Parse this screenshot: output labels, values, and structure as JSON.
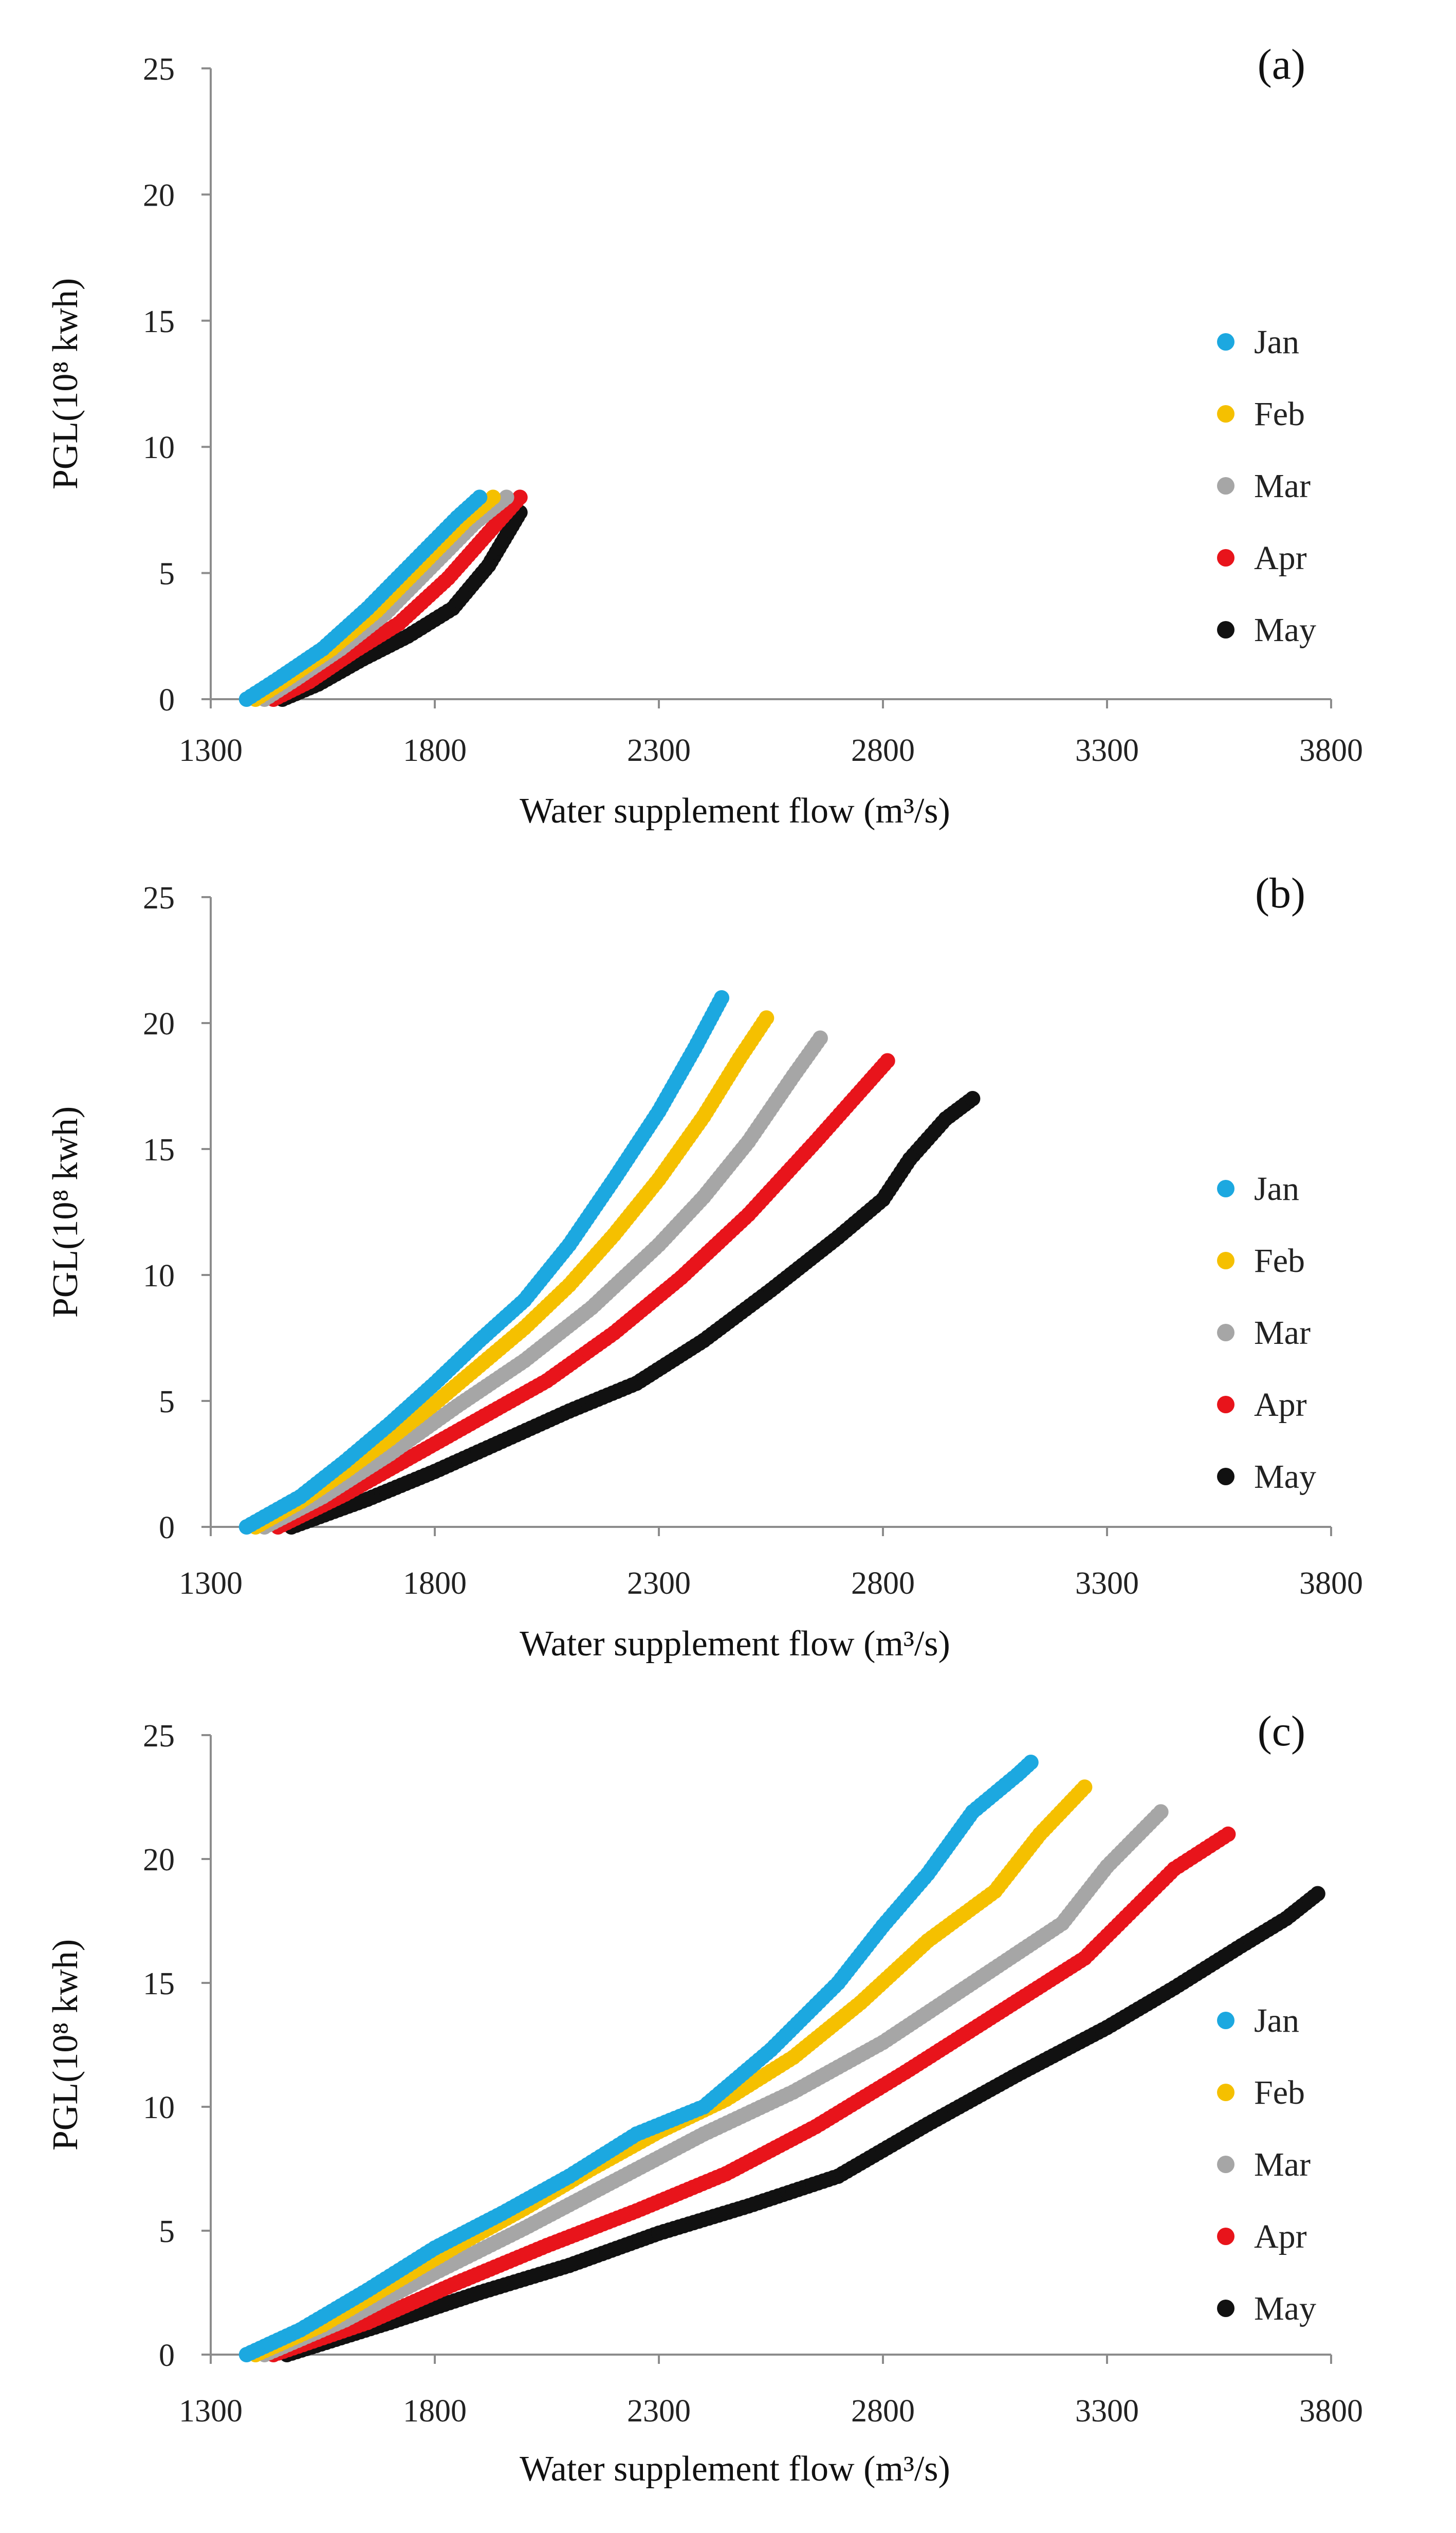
{
  "chart_data": [
    {
      "type": "scatter",
      "panel_label": "(a)",
      "xlabel": "Water supplement flow (m³/s)",
      "ylabel": "PGL(10⁸ kwh)",
      "xlim": [
        1300,
        3800
      ],
      "ylim": [
        0,
        25
      ],
      "xticks": [
        1300,
        1800,
        2300,
        2800,
        3300,
        3800
      ],
      "yticks": [
        0,
        5,
        10,
        15,
        20,
        25
      ],
      "legend_position": "right",
      "series": [
        {
          "name": "Jan",
          "color": "#1CA8E0",
          "points": [
            [
              1380,
              0
            ],
            [
              1450,
              0.8
            ],
            [
              1550,
              2.0
            ],
            [
              1650,
              3.6
            ],
            [
              1750,
              5.4
            ],
            [
              1850,
              7.2
            ],
            [
              1900,
              8.0
            ]
          ]
        },
        {
          "name": "Feb",
          "color": "#F5C000",
          "points": [
            [
              1400,
              0
            ],
            [
              1470,
              0.8
            ],
            [
              1570,
              2.0
            ],
            [
              1670,
              3.5
            ],
            [
              1770,
              5.3
            ],
            [
              1870,
              7.1
            ],
            [
              1930,
              8.0
            ]
          ]
        },
        {
          "name": "Mar",
          "color": "#A6A6A6",
          "points": [
            [
              1420,
              0
            ],
            [
              1490,
              0.8
            ],
            [
              1590,
              2.0
            ],
            [
              1690,
              3.4
            ],
            [
              1790,
              5.2
            ],
            [
              1890,
              7.0
            ],
            [
              1960,
              8.0
            ]
          ]
        },
        {
          "name": "Apr",
          "color": "#E8141B",
          "points": [
            [
              1440,
              0
            ],
            [
              1520,
              0.7
            ],
            [
              1620,
              1.9
            ],
            [
              1720,
              3.0
            ],
            [
              1830,
              4.8
            ],
            [
              1920,
              6.6
            ],
            [
              1990,
              8.0
            ]
          ]
        },
        {
          "name": "May",
          "color": "#111111",
          "points": [
            [
              1460,
              0
            ],
            [
              1540,
              0.6
            ],
            [
              1640,
              1.6
            ],
            [
              1740,
              2.5
            ],
            [
              1840,
              3.6
            ],
            [
              1920,
              5.3
            ],
            [
              1990,
              7.4
            ]
          ]
        }
      ]
    },
    {
      "type": "scatter",
      "panel_label": "(b)",
      "xlabel": "Water supplement flow (m³/s)",
      "ylabel": "PGL(10⁸ kwh)",
      "xlim": [
        1300,
        3800
      ],
      "ylim": [
        0,
        25
      ],
      "xticks": [
        1300,
        1800,
        2300,
        2800,
        3300,
        3800
      ],
      "yticks": [
        0,
        5,
        10,
        15,
        20,
        25
      ],
      "legend_position": "right",
      "series": [
        {
          "name": "Jan",
          "color": "#1CA8E0",
          "points": [
            [
              1380,
              0
            ],
            [
              1500,
              1.2
            ],
            [
              1600,
              2.6
            ],
            [
              1700,
              4.1
            ],
            [
              1800,
              5.7
            ],
            [
              1900,
              7.4
            ],
            [
              2000,
              9.0
            ],
            [
              2100,
              11.2
            ],
            [
              2200,
              13.8
            ],
            [
              2300,
              16.5
            ],
            [
              2380,
              19.0
            ],
            [
              2440,
              21.0
            ]
          ]
        },
        {
          "name": "Feb",
          "color": "#F5C000",
          "points": [
            [
              1400,
              0
            ],
            [
              1500,
              1.0
            ],
            [
              1600,
              2.2
            ],
            [
              1700,
              3.5
            ],
            [
              1800,
              4.9
            ],
            [
              1900,
              6.4
            ],
            [
              2000,
              7.9
            ],
            [
              2100,
              9.6
            ],
            [
              2200,
              11.6
            ],
            [
              2300,
              13.8
            ],
            [
              2400,
              16.3
            ],
            [
              2480,
              18.6
            ],
            [
              2540,
              20.2
            ]
          ]
        },
        {
          "name": "Mar",
          "color": "#A6A6A6",
          "points": [
            [
              1420,
              0
            ],
            [
              1550,
              1.2
            ],
            [
              1700,
              2.9
            ],
            [
              1850,
              4.8
            ],
            [
              2000,
              6.6
            ],
            [
              2150,
              8.7
            ],
            [
              2300,
              11.2
            ],
            [
              2400,
              13.1
            ],
            [
              2500,
              15.3
            ],
            [
              2600,
              17.9
            ],
            [
              2660,
              19.4
            ]
          ]
        },
        {
          "name": "Apr",
          "color": "#E8141B",
          "points": [
            [
              1450,
              0
            ],
            [
              1600,
              1.3
            ],
            [
              1750,
              2.8
            ],
            [
              1900,
              4.3
            ],
            [
              2050,
              5.8
            ],
            [
              2200,
              7.7
            ],
            [
              2350,
              9.9
            ],
            [
              2500,
              12.4
            ],
            [
              2650,
              15.3
            ],
            [
              2750,
              17.3
            ],
            [
              2810,
              18.5
            ]
          ]
        },
        {
          "name": "May",
          "color": "#111111",
          "points": [
            [
              1480,
              0
            ],
            [
              1650,
              1.1
            ],
            [
              1800,
              2.2
            ],
            [
              1950,
              3.4
            ],
            [
              2100,
              4.6
            ],
            [
              2250,
              5.7
            ],
            [
              2400,
              7.4
            ],
            [
              2550,
              9.4
            ],
            [
              2700,
              11.5
            ],
            [
              2800,
              13.0
            ],
            [
              2860,
              14.6
            ],
            [
              2940,
              16.2
            ],
            [
              3000,
              17.0
            ]
          ]
        }
      ]
    },
    {
      "type": "scatter",
      "panel_label": "(c)",
      "xlabel": "Water supplement flow (m³/s)",
      "ylabel": "PGL(10⁸ kwh)",
      "xlim": [
        1300,
        3800
      ],
      "ylim": [
        0,
        25
      ],
      "xticks": [
        1300,
        1800,
        2300,
        2800,
        3300,
        3800
      ],
      "yticks": [
        0,
        5,
        10,
        15,
        20,
        25
      ],
      "legend_position": "right",
      "series": [
        {
          "name": "Jan",
          "color": "#1CA8E0",
          "points": [
            [
              1380,
              0
            ],
            [
              1500,
              1.0
            ],
            [
              1650,
              2.6
            ],
            [
              1800,
              4.3
            ],
            [
              1950,
              5.7
            ],
            [
              2100,
              7.2
            ],
            [
              2250,
              8.9
            ],
            [
              2400,
              10.0
            ],
            [
              2550,
              12.3
            ],
            [
              2700,
              15.0
            ],
            [
              2800,
              17.3
            ],
            [
              2900,
              19.4
            ],
            [
              3000,
              21.9
            ],
            [
              3100,
              23.4
            ],
            [
              3130,
              23.9
            ]
          ]
        },
        {
          "name": "Feb",
          "color": "#F5C000",
          "points": [
            [
              1400,
              0
            ],
            [
              1550,
              1.2
            ],
            [
              1700,
              2.8
            ],
            [
              1850,
              4.4
            ],
            [
              2000,
              5.9
            ],
            [
              2150,
              7.5
            ],
            [
              2300,
              9.0
            ],
            [
              2450,
              10.3
            ],
            [
              2600,
              12.0
            ],
            [
              2750,
              14.2
            ],
            [
              2900,
              16.7
            ],
            [
              3050,
              18.7
            ],
            [
              3150,
              21.0
            ],
            [
              3250,
              22.9
            ]
          ]
        },
        {
          "name": "Mar",
          "color": "#A6A6A6",
          "points": [
            [
              1420,
              0
            ],
            [
              1600,
              1.4
            ],
            [
              1800,
              3.3
            ],
            [
              2000,
              5.1
            ],
            [
              2200,
              7.0
            ],
            [
              2400,
              8.9
            ],
            [
              2600,
              10.6
            ],
            [
              2800,
              12.6
            ],
            [
              3000,
              15.0
            ],
            [
              3200,
              17.4
            ],
            [
              3300,
              19.7
            ],
            [
              3420,
              21.9
            ]
          ]
        },
        {
          "name": "Apr",
          "color": "#E8141B",
          "points": [
            [
              1440,
              0
            ],
            [
              1650,
              1.3
            ],
            [
              1850,
              2.9
            ],
            [
              2050,
              4.4
            ],
            [
              2250,
              5.8
            ],
            [
              2450,
              7.3
            ],
            [
              2650,
              9.2
            ],
            [
              2850,
              11.4
            ],
            [
              3050,
              13.7
            ],
            [
              3250,
              16.0
            ],
            [
              3350,
              17.8
            ],
            [
              3450,
              19.6
            ],
            [
              3570,
              21.0
            ]
          ]
        },
        {
          "name": "May",
          "color": "#111111",
          "points": [
            [
              1470,
              0
            ],
            [
              1700,
              1.3
            ],
            [
              1900,
              2.5
            ],
            [
              2100,
              3.6
            ],
            [
              2300,
              4.9
            ],
            [
              2500,
              6.0
            ],
            [
              2700,
              7.2
            ],
            [
              2900,
              9.3
            ],
            [
              3100,
              11.3
            ],
            [
              3300,
              13.2
            ],
            [
              3450,
              14.8
            ],
            [
              3600,
              16.5
            ],
            [
              3700,
              17.6
            ],
            [
              3770,
              18.6
            ]
          ]
        }
      ]
    }
  ]
}
